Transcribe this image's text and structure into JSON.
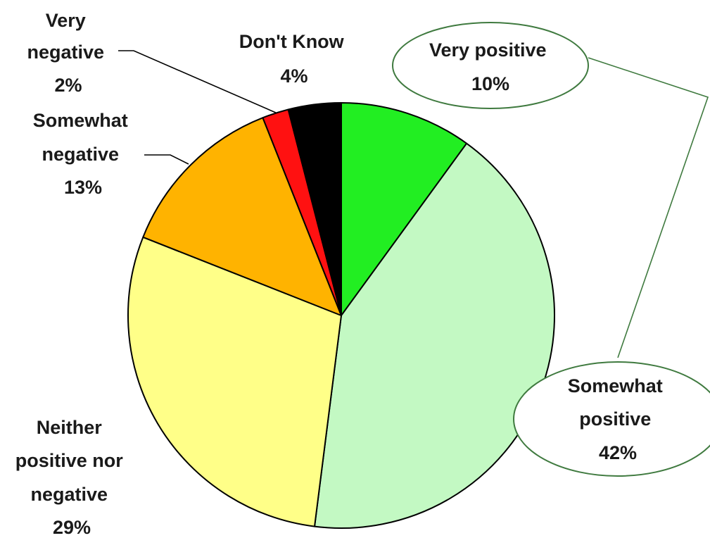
{
  "chart_data": {
    "type": "pie",
    "title": "",
    "slices": [
      {
        "label": "Very positive",
        "line1": "Very positive",
        "line2": "",
        "line3": "",
        "pct_text": "10%",
        "value": 10,
        "color": "#22ee22"
      },
      {
        "label": "Somewhat positive",
        "line1": "Somewhat",
        "line2": "positive",
        "line3": "",
        "pct_text": "42%",
        "value": 42,
        "color": "#c3f9c3"
      },
      {
        "label": "Neither positive nor negative",
        "line1": "Neither",
        "line2": "positive nor",
        "line3": "negative",
        "pct_text": "29%",
        "value": 29,
        "color": "#ffff88"
      },
      {
        "label": "Somewhat negative",
        "line1": "Somewhat",
        "line2": "negative",
        "line3": "",
        "pct_text": "13%",
        "value": 13,
        "color": "#ffb300"
      },
      {
        "label": "Very negative",
        "line1": "Very",
        "line2": "negative",
        "line3": "",
        "pct_text": "2%",
        "value": 2,
        "color": "#ff1111"
      },
      {
        "label": "Don't Know",
        "line1": "Don't Know",
        "line2": "",
        "line3": "",
        "pct_text": "4%",
        "value": 4,
        "color": "#000000"
      }
    ],
    "start_angle_deg": 0,
    "direction": "clockwise",
    "legend": "none",
    "label_placement": "outside-with-leaders"
  }
}
